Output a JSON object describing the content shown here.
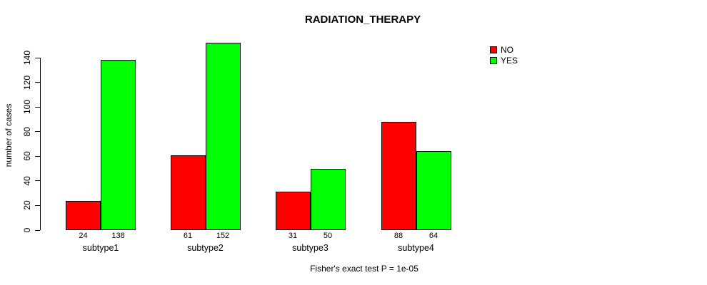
{
  "title": "RADIATION_THERAPY",
  "caption": "Fisher's exact test P = 1e-05",
  "colors": {
    "no": "#FF0000",
    "yes": "#00FF00",
    "axis": "#000000",
    "background": "#FFFFFF"
  },
  "legend": {
    "items": [
      {
        "label": "NO",
        "color": "#FF0000"
      },
      {
        "label": "YES",
        "color": "#00FF00"
      }
    ]
  },
  "chart_data": {
    "type": "bar",
    "title": "RADIATION_THERAPY",
    "categories": [
      "subtype1",
      "subtype2",
      "subtype3",
      "subtype4"
    ],
    "series": [
      {
        "name": "NO",
        "color": "#FF0000",
        "values": [
          24,
          61,
          31,
          88
        ]
      },
      {
        "name": "YES",
        "color": "#00FF00",
        "values": [
          138,
          152,
          50,
          64
        ]
      }
    ],
    "xlabel": "",
    "ylabel": "number of cases",
    "ylim": [
      0,
      140
    ],
    "yticks": [
      0,
      20,
      40,
      60,
      80,
      100,
      120,
      140
    ],
    "grid": false,
    "legend_position": "top-right",
    "bar_value_labels": [
      [
        24,
        138
      ],
      [
        61,
        152
      ],
      [
        31,
        50
      ],
      [
        88,
        64
      ]
    ],
    "annotation": "Fisher's exact test P = 1e-05"
  }
}
